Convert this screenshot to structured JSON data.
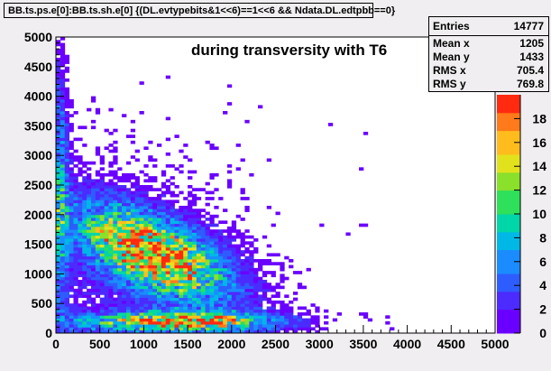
{
  "title": "BB.ts.ps.e[0]:BB.ts.sh.e[0] {(DL.evtypebits&1<<6)==1<<6 && Ndata.DL.edtpbb==0}",
  "annotation": "during transversity with T6",
  "stats": {
    "header_label": "Entries",
    "header_value": "14777",
    "rows": [
      {
        "label": "Mean x",
        "value": "1205"
      },
      {
        "label": "Mean y",
        "value": "1433"
      },
      {
        "label": "RMS x",
        "value": "705.4"
      },
      {
        "label": "RMS y",
        "value": "769.8"
      }
    ]
  },
  "chart_data": {
    "type": "heatmap",
    "title": "",
    "xlabel": "",
    "ylabel": "",
    "xlim": [
      0,
      5000
    ],
    "ylim": [
      0,
      5000
    ],
    "xticks": [
      "0",
      "500",
      "1000",
      "1500",
      "2000",
      "2500",
      "3000",
      "3500",
      "4000",
      "4500",
      "5000"
    ],
    "yticks": [
      "0",
      "500",
      "1000",
      "1500",
      "2000",
      "2500",
      "3000",
      "3500",
      "4000",
      "4500",
      "5000"
    ],
    "bins": [
      100,
      100
    ],
    "z_range": [
      0,
      20
    ],
    "colorbar_ticks": [
      "0",
      "2",
      "4",
      "6",
      "8",
      "10",
      "12",
      "14",
      "16",
      "18"
    ],
    "distribution": {
      "main_band": {
        "x_center": 1100,
        "y_center": 1350,
        "x_sigma": 550,
        "y_sigma": 420,
        "slope": -0.55,
        "peak": 18
      },
      "bottom_band": {
        "x_center": 1400,
        "y_center": 200,
        "x_sigma": 700,
        "y_sigma": 110,
        "peak": 16
      },
      "left_edge": {
        "x_center": 50,
        "y_center": 2300,
        "x_sigma": 60,
        "y_sigma": 1300,
        "peak": 7
      },
      "sparse_background": true
    },
    "grid": false,
    "colors": {
      "palette": [
        "#6a00ff",
        "#4b2bff",
        "#2d5dff",
        "#1a8cff",
        "#00b8e6",
        "#00d6a8",
        "#2ee05a",
        "#8ae02a",
        "#e2e21c",
        "#ffbc1c",
        "#ff7a1a",
        "#ff2a10"
      ],
      "frame": "#000000",
      "background": "#ffffff"
    }
  }
}
